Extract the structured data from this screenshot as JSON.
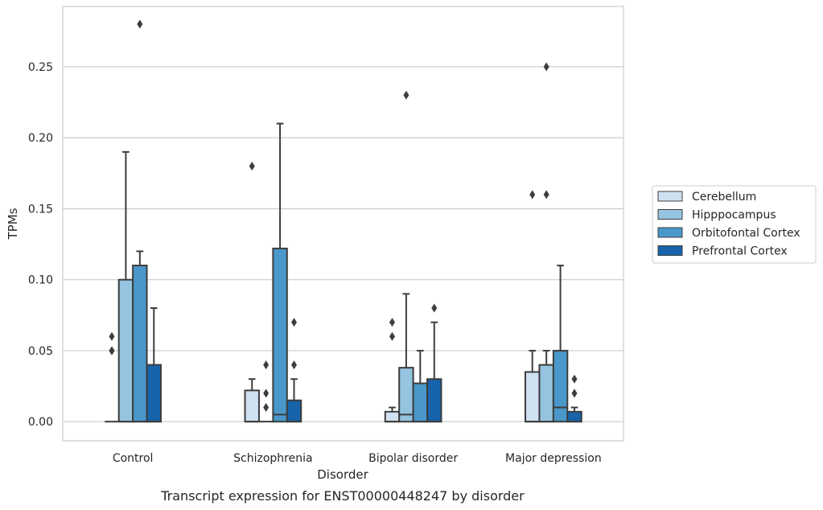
{
  "chart_data": {
    "type": "box",
    "caption": "Transcript expression for ENST00000448247 by disorder",
    "xlabel": "Disorder",
    "ylabel": "TPMs",
    "ylim": [
      -0.0135,
      0.2925
    ],
    "yticks": [
      "0.00",
      "0.05",
      "0.10",
      "0.15",
      "0.20",
      "0.25"
    ],
    "ytick_values": [
      0,
      0.05,
      0.1,
      0.15,
      0.2,
      0.25
    ],
    "grid": "horizontal",
    "legend_position": "right",
    "categories": [
      "Control",
      "Schizophrenia",
      "Bipolar disorder",
      "Major depression"
    ],
    "series": [
      {
        "name": "Cerebellum",
        "color": "#d0e1f2",
        "boxes": [
          {
            "q1": 0,
            "median": 0,
            "q3": 0,
            "whislo": 0,
            "whishi": 0,
            "fliers": [
              0.05,
              0.05,
              0.06
            ]
          },
          {
            "q1": 0,
            "median": 0,
            "q3": 0.022,
            "whislo": 0,
            "whishi": 0.03,
            "fliers": [
              0.18
            ]
          },
          {
            "q1": 0,
            "median": 0,
            "q3": 0.007,
            "whislo": 0,
            "whishi": 0.01,
            "fliers": [
              0.06,
              0.07
            ]
          },
          {
            "q1": 0,
            "median": 0,
            "q3": 0.035,
            "whislo": 0,
            "whishi": 0.05,
            "fliers": [
              0.16
            ]
          }
        ]
      },
      {
        "name": "Hipppocampus",
        "color": "#94c4df",
        "boxes": [
          {
            "q1": 0,
            "median": 0,
            "q3": 0.1,
            "whislo": 0,
            "whishi": 0.19,
            "fliers": []
          },
          {
            "q1": 0,
            "median": 0,
            "q3": 0,
            "whislo": 0,
            "whishi": 0,
            "fliers": [
              0.01,
              0.02,
              0.04
            ]
          },
          {
            "q1": 0,
            "median": 0.005,
            "q3": 0.038,
            "whislo": 0,
            "whishi": 0.09,
            "fliers": [
              0.23
            ]
          },
          {
            "q1": 0,
            "median": 0,
            "q3": 0.04,
            "whislo": 0,
            "whishi": 0.05,
            "fliers": [
              0.16,
              0.25
            ]
          }
        ]
      },
      {
        "name": "Orbitofontal Cortex",
        "color": "#4a98c9",
        "boxes": [
          {
            "q1": 0,
            "median": 0,
            "q3": 0.11,
            "whislo": 0,
            "whishi": 0.12,
            "fliers": [
              0.28
            ]
          },
          {
            "q1": 0,
            "median": 0.005,
            "q3": 0.122,
            "whislo": 0,
            "whishi": 0.21,
            "fliers": []
          },
          {
            "q1": 0,
            "median": 0,
            "q3": 0.027,
            "whislo": 0,
            "whishi": 0.05,
            "fliers": []
          },
          {
            "q1": 0,
            "median": 0.01,
            "q3": 0.05,
            "whislo": 0,
            "whishi": 0.11,
            "fliers": []
          }
        ]
      },
      {
        "name": "Prefrontal Cortex",
        "color": "#1764ab",
        "boxes": [
          {
            "q1": 0,
            "median": 0,
            "q3": 0.04,
            "whislo": 0,
            "whishi": 0.08,
            "fliers": []
          },
          {
            "q1": 0,
            "median": 0,
            "q3": 0.015,
            "whislo": 0,
            "whishi": 0.03,
            "fliers": [
              0.04,
              0.07
            ]
          },
          {
            "q1": 0,
            "median": 0,
            "q3": 0.03,
            "whislo": 0,
            "whishi": 0.07,
            "fliers": [
              0.08
            ]
          },
          {
            "q1": 0,
            "median": 0,
            "q3": 0.007,
            "whislo": 0,
            "whishi": 0.01,
            "fliers": [
              0.02,
              0.03
            ]
          }
        ]
      }
    ]
  }
}
